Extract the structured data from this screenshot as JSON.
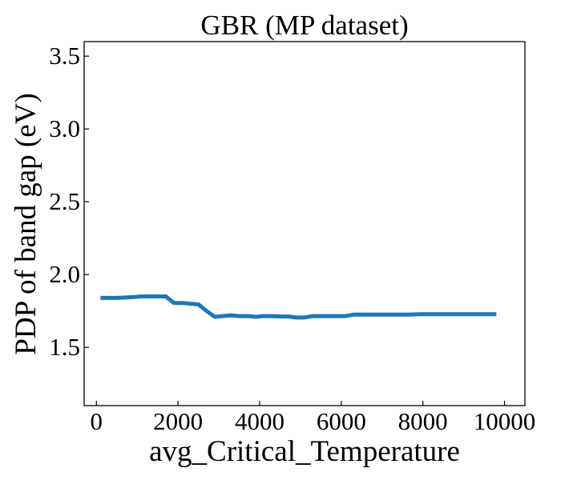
{
  "chart_data": {
    "type": "line",
    "title": "GBR (MP dataset)",
    "xlabel": "avg_Critical_Temperature",
    "ylabel": "PDP of band gap (eV)",
    "xlim": [
      -300,
      10500
    ],
    "ylim": [
      1.1,
      3.6
    ],
    "x_ticks": [
      {
        "value": 0,
        "label": "0"
      },
      {
        "value": 2000,
        "label": "2000"
      },
      {
        "value": 4000,
        "label": "4000"
      },
      {
        "value": 6000,
        "label": "6000"
      },
      {
        "value": 8000,
        "label": "8000"
      },
      {
        "value": 10000,
        "label": "10000"
      }
    ],
    "y_ticks": [
      {
        "value": 1.5,
        "label": "1.5"
      },
      {
        "value": 2.0,
        "label": "2.0"
      },
      {
        "value": 2.5,
        "label": "2.5"
      },
      {
        "value": 3.0,
        "label": "3.0"
      },
      {
        "value": 3.5,
        "label": "3.5"
      }
    ],
    "grid": false,
    "legend": "none",
    "tick_direction": "in",
    "line_color": "#1f77b4",
    "series": [
      {
        "x": [
          100,
          500,
          900,
          1100,
          1300,
          1700,
          1900,
          2100,
          2300,
          2500,
          2700,
          2900,
          3100,
          3300,
          3500,
          3700,
          3900,
          4100,
          4300,
          4500,
          4700,
          4900,
          5100,
          5300,
          5500,
          5700,
          5900,
          6100,
          6300,
          6500,
          6700,
          6900,
          7100,
          7300,
          7500,
          7700,
          7900,
          8100,
          8300,
          8500,
          8700,
          8900,
          9100,
          9300,
          9500,
          9800
        ],
        "y": [
          1.84,
          1.84,
          1.845,
          1.85,
          1.85,
          1.85,
          1.805,
          1.805,
          1.8,
          1.795,
          1.75,
          1.71,
          1.715,
          1.72,
          1.715,
          1.715,
          1.71,
          1.715,
          1.715,
          1.712,
          1.712,
          1.705,
          1.705,
          1.715,
          1.715,
          1.715,
          1.715,
          1.715,
          1.725,
          1.725,
          1.725,
          1.725,
          1.725,
          1.725,
          1.725,
          1.725,
          1.728,
          1.728,
          1.728,
          1.728,
          1.728,
          1.728,
          1.728,
          1.728,
          1.728,
          1.728
        ]
      }
    ]
  }
}
